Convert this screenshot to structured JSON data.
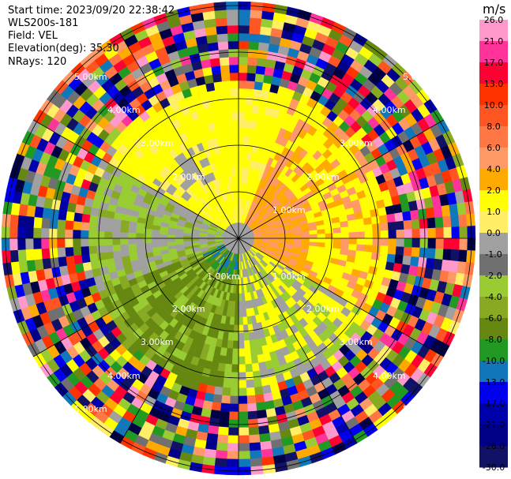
{
  "header": {
    "start_time": "Start time: 2023/09/20 22:38:42",
    "instrument": "WLS200s-181",
    "field": "Field: VEL",
    "elevation": "Elevation(deg): 35.30",
    "nrays": "NRays: 120"
  },
  "ring_labels": {
    "r1": "1.00km",
    "r2": "2.00km",
    "r3": "3.00km",
    "r4": "4.00km",
    "r5": "5.00km"
  },
  "colorbar": {
    "unit": "m/s",
    "ticks": [
      "26.0",
      "21.0",
      "17.0",
      "13.0",
      "10.0",
      "8.0",
      "6.0",
      "4.0",
      "2.0",
      "1.0",
      "0.0",
      "-1.0",
      "-2.0",
      "-4.0",
      "-6.0",
      "-8.0",
      "-10.0",
      "-13.0",
      "-17.0",
      "-21.0",
      "-26.0",
      "-30.0"
    ],
    "colors": [
      "#ff99cc",
      "#ff3399",
      "#ff0033",
      "#ff3300",
      "#ff5522",
      "#ff7744",
      "#ff9966",
      "#ffaa00",
      "#ffff00",
      "#ffee66",
      "#a0a0a0",
      "#707070",
      "#99cc33",
      "#88aa22",
      "#668811",
      "#229922",
      "#1177bb",
      "#0000ee",
      "#0000aa",
      "#000088",
      "#111166",
      "#000044"
    ]
  }
}
